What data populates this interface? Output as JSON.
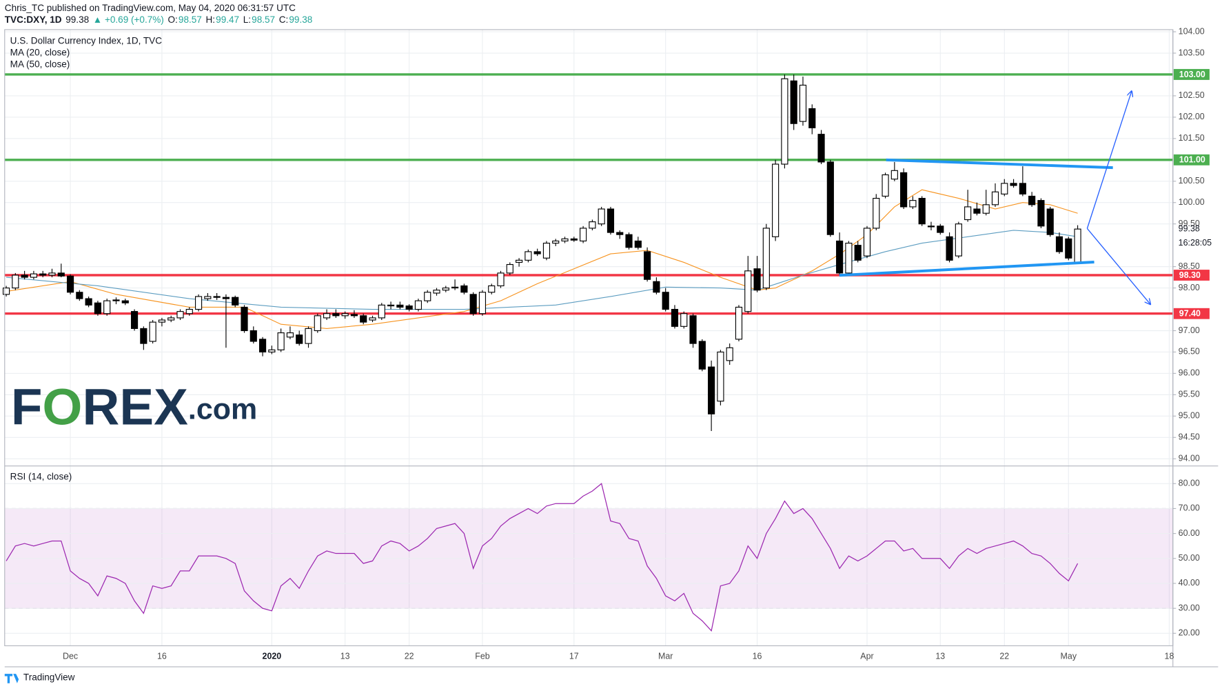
{
  "header": {
    "author_line": "Chris_TC published on TradingView.com, May 04, 2020 06:31:57 UTC",
    "quote_parts": [
      {
        "text": "TVC:DXY, 1D",
        "color": "#131722"
      },
      {
        "text": "99.38",
        "color": "#131722"
      },
      {
        "text": "▲ +0.69 (+0.7%)",
        "color": "#26a69a"
      },
      {
        "text": "O:",
        "color": "#131722"
      },
      {
        "text": "98.57",
        "color": "#26a69a"
      },
      {
        "text": "H:",
        "color": "#131722"
      },
      {
        "text": "99.47",
        "color": "#26a69a"
      },
      {
        "text": "L:",
        "color": "#131722"
      },
      {
        "text": "98.57",
        "color": "#26a69a"
      },
      {
        "text": "C:",
        "color": "#131722"
      },
      {
        "text": "99.38",
        "color": "#26a69a"
      }
    ]
  },
  "logo": {
    "parts": [
      {
        "text": "F",
        "color": "#1b3553"
      },
      {
        "text": "O",
        "color": "#43a047"
      },
      {
        "text": "REX",
        "color": "#1b3553"
      },
      {
        "text": ".com",
        "color": "#1b3553"
      }
    ]
  },
  "footer": {
    "brand": "TradingView"
  },
  "chart_data": {
    "type": "candlestick",
    "title": "U.S. Dollar Currency Index, 1D, TVC",
    "up_color": "#ffffff",
    "down_color": "#000000",
    "xlim": [
      -0.17,
      127.4
    ],
    "xticks": [
      {
        "value": 7,
        "label": "Dec"
      },
      {
        "value": 17,
        "label": "16"
      },
      {
        "value": 29,
        "label": "2020"
      },
      {
        "value": 37,
        "label": "13"
      },
      {
        "value": 44,
        "label": "22"
      },
      {
        "value": 52,
        "label": "Feb"
      },
      {
        "value": 62,
        "label": "17"
      },
      {
        "value": 72,
        "label": "Mar"
      },
      {
        "value": 82,
        "label": "16"
      },
      {
        "value": 94,
        "label": "Apr"
      },
      {
        "value": 102,
        "label": "13"
      },
      {
        "value": 109,
        "label": "22"
      },
      {
        "value": 116,
        "label": "May"
      },
      {
        "value": 127,
        "label": "18"
      }
    ],
    "ylim": [
      93.84,
      104.05
    ],
    "yticks": [
      {
        "value": 104,
        "label": "104.00"
      },
      {
        "value": 103.5,
        "label": "103.50"
      },
      {
        "value": 102.5,
        "label": "102.50"
      },
      {
        "value": 102,
        "label": "102.00"
      },
      {
        "value": 101.5,
        "label": "101.50"
      },
      {
        "value": 100.5,
        "label": "100.50"
      },
      {
        "value": 100,
        "label": "100.00"
      },
      {
        "value": 99.5,
        "label": "99.50"
      },
      {
        "value": 98.5,
        "label": "98.50"
      },
      {
        "value": 98,
        "label": "98.00"
      },
      {
        "value": 97,
        "label": "97.00"
      },
      {
        "value": 96.5,
        "label": "96.50"
      },
      {
        "value": 96,
        "label": "96.00"
      },
      {
        "value": 95.5,
        "label": "95.50"
      },
      {
        "value": 95,
        "label": "95.00"
      },
      {
        "value": 94.5,
        "label": "94.50"
      },
      {
        "value": 94,
        "label": "94.00"
      }
    ],
    "grid": true,
    "last_price": 99.38,
    "countdown": "16:28:05",
    "levels": [
      {
        "value": 103,
        "label": "103.00",
        "color": "#4caf50"
      },
      {
        "value": 101,
        "label": "101.00",
        "color": "#4caf50"
      },
      {
        "value": 98.3,
        "label": "98.30",
        "color": "#f23645"
      },
      {
        "value": 97.4,
        "label": "97.40",
        "color": "#f23645"
      }
    ],
    "candles": [
      {
        "o": 97.85,
        "h": 98.05,
        "l": 97.8,
        "c": 98.0
      },
      {
        "o": 98.0,
        "h": 98.35,
        "l": 97.95,
        "c": 98.3
      },
      {
        "o": 98.3,
        "h": 98.4,
        "l": 98.2,
        "c": 98.25
      },
      {
        "o": 98.25,
        "h": 98.4,
        "l": 98.2,
        "c": 98.33
      },
      {
        "o": 98.33,
        "h": 98.4,
        "l": 98.25,
        "c": 98.3
      },
      {
        "o": 98.3,
        "h": 98.45,
        "l": 98.25,
        "c": 98.35
      },
      {
        "o": 98.35,
        "h": 98.57,
        "l": 98.25,
        "c": 98.28
      },
      {
        "o": 98.28,
        "h": 98.32,
        "l": 97.85,
        "c": 97.9
      },
      {
        "o": 97.9,
        "h": 97.95,
        "l": 97.7,
        "c": 97.75
      },
      {
        "o": 97.75,
        "h": 97.8,
        "l": 97.55,
        "c": 97.6
      },
      {
        "o": 97.65,
        "h": 97.7,
        "l": 97.35,
        "c": 97.4
      },
      {
        "o": 97.4,
        "h": 97.75,
        "l": 97.35,
        "c": 97.7
      },
      {
        "o": 97.72,
        "h": 97.78,
        "l": 97.62,
        "c": 97.7
      },
      {
        "o": 97.7,
        "h": 97.75,
        "l": 97.6,
        "c": 97.65
      },
      {
        "o": 97.45,
        "h": 97.5,
        "l": 97.0,
        "c": 97.05
      },
      {
        "o": 97.05,
        "h": 97.1,
        "l": 96.55,
        "c": 96.7
      },
      {
        "o": 96.75,
        "h": 97.25,
        "l": 96.7,
        "c": 97.2
      },
      {
        "o": 97.2,
        "h": 97.3,
        "l": 97.1,
        "c": 97.25
      },
      {
        "o": 97.25,
        "h": 97.35,
        "l": 97.2,
        "c": 97.3
      },
      {
        "o": 97.3,
        "h": 97.5,
        "l": 97.25,
        "c": 97.45
      },
      {
        "o": 97.4,
        "h": 97.55,
        "l": 97.35,
        "c": 97.5
      },
      {
        "o": 97.5,
        "h": 97.85,
        "l": 97.45,
        "c": 97.8
      },
      {
        "o": 97.75,
        "h": 97.88,
        "l": 97.7,
        "c": 97.8
      },
      {
        "o": 97.8,
        "h": 97.88,
        "l": 97.72,
        "c": 97.78
      },
      {
        "o": 97.78,
        "h": 97.85,
        "l": 96.6,
        "c": 97.75
      },
      {
        "o": 97.78,
        "h": 97.82,
        "l": 97.55,
        "c": 97.6
      },
      {
        "o": 97.55,
        "h": 97.6,
        "l": 96.95,
        "c": 97.0
      },
      {
        "o": 97.0,
        "h": 97.1,
        "l": 96.7,
        "c": 96.75
      },
      {
        "o": 96.8,
        "h": 96.85,
        "l": 96.4,
        "c": 96.5
      },
      {
        "o": 96.5,
        "h": 96.65,
        "l": 96.45,
        "c": 96.55
      },
      {
        "o": 96.55,
        "h": 97.05,
        "l": 96.5,
        "c": 96.95
      },
      {
        "o": 96.85,
        "h": 97.1,
        "l": 96.8,
        "c": 96.95
      },
      {
        "o": 96.9,
        "h": 97.0,
        "l": 96.65,
        "c": 96.7
      },
      {
        "o": 96.7,
        "h": 97.1,
        "l": 96.6,
        "c": 97.05
      },
      {
        "o": 97.0,
        "h": 97.4,
        "l": 96.95,
        "c": 97.35
      },
      {
        "o": 97.3,
        "h": 97.5,
        "l": 97.25,
        "c": 97.4
      },
      {
        "o": 97.4,
        "h": 97.5,
        "l": 97.3,
        "c": 97.35
      },
      {
        "o": 97.35,
        "h": 97.45,
        "l": 97.28,
        "c": 97.4
      },
      {
        "o": 97.38,
        "h": 97.48,
        "l": 97.3,
        "c": 97.35
      },
      {
        "o": 97.35,
        "h": 97.4,
        "l": 97.15,
        "c": 97.2
      },
      {
        "o": 97.25,
        "h": 97.35,
        "l": 97.2,
        "c": 97.3
      },
      {
        "o": 97.3,
        "h": 97.65,
        "l": 97.25,
        "c": 97.6
      },
      {
        "o": 97.58,
        "h": 97.68,
        "l": 97.5,
        "c": 97.6
      },
      {
        "o": 97.6,
        "h": 97.68,
        "l": 97.5,
        "c": 97.55
      },
      {
        "o": 97.58,
        "h": 97.62,
        "l": 97.45,
        "c": 97.5
      },
      {
        "o": 97.5,
        "h": 97.75,
        "l": 97.45,
        "c": 97.7
      },
      {
        "o": 97.7,
        "h": 97.95,
        "l": 97.65,
        "c": 97.9
      },
      {
        "o": 97.88,
        "h": 98.0,
        "l": 97.82,
        "c": 97.95
      },
      {
        "o": 97.95,
        "h": 98.05,
        "l": 97.9,
        "c": 98.0
      },
      {
        "o": 98.0,
        "h": 98.2,
        "l": 97.95,
        "c": 98.02
      },
      {
        "o": 98.05,
        "h": 98.1,
        "l": 97.85,
        "c": 97.9
      },
      {
        "o": 97.85,
        "h": 97.9,
        "l": 97.35,
        "c": 97.4
      },
      {
        "o": 97.4,
        "h": 97.95,
        "l": 97.35,
        "c": 97.9
      },
      {
        "o": 97.9,
        "h": 98.1,
        "l": 97.85,
        "c": 98.05
      },
      {
        "o": 98.05,
        "h": 98.4,
        "l": 98.0,
        "c": 98.35
      },
      {
        "o": 98.35,
        "h": 98.6,
        "l": 98.3,
        "c": 98.55
      },
      {
        "o": 98.6,
        "h": 98.7,
        "l": 98.5,
        "c": 98.65
      },
      {
        "o": 98.65,
        "h": 98.9,
        "l": 98.6,
        "c": 98.85
      },
      {
        "o": 98.85,
        "h": 98.92,
        "l": 98.75,
        "c": 98.8
      },
      {
        "o": 98.7,
        "h": 99.1,
        "l": 98.65,
        "c": 99.05
      },
      {
        "o": 99.05,
        "h": 99.15,
        "l": 98.98,
        "c": 99.1
      },
      {
        "o": 99.1,
        "h": 99.2,
        "l": 99.05,
        "c": 99.15
      },
      {
        "o": 99.15,
        "h": 99.2,
        "l": 99.08,
        "c": 99.12
      },
      {
        "o": 99.1,
        "h": 99.45,
        "l": 99.05,
        "c": 99.4
      },
      {
        "o": 99.4,
        "h": 99.6,
        "l": 99.35,
        "c": 99.55
      },
      {
        "o": 99.5,
        "h": 99.9,
        "l": 99.45,
        "c": 99.85
      },
      {
        "o": 99.85,
        "h": 99.9,
        "l": 99.25,
        "c": 99.3
      },
      {
        "o": 99.3,
        "h": 99.35,
        "l": 99.15,
        "c": 99.25
      },
      {
        "o": 99.25,
        "h": 99.3,
        "l": 98.9,
        "c": 98.95
      },
      {
        "o": 99.1,
        "h": 99.2,
        "l": 98.9,
        "c": 98.95
      },
      {
        "o": 98.85,
        "h": 98.95,
        "l": 98.15,
        "c": 98.2
      },
      {
        "o": 98.15,
        "h": 98.25,
        "l": 97.85,
        "c": 97.9
      },
      {
        "o": 97.9,
        "h": 98.0,
        "l": 97.45,
        "c": 97.5
      },
      {
        "o": 97.5,
        "h": 97.6,
        "l": 97.05,
        "c": 97.1
      },
      {
        "o": 97.1,
        "h": 97.45,
        "l": 97.05,
        "c": 97.4
      },
      {
        "o": 97.35,
        "h": 97.4,
        "l": 96.6,
        "c": 96.7
      },
      {
        "o": 96.75,
        "h": 96.8,
        "l": 96.05,
        "c": 96.1
      },
      {
        "o": 96.15,
        "h": 96.3,
        "l": 94.65,
        "c": 95.05
      },
      {
        "o": 95.35,
        "h": 96.55,
        "l": 95.25,
        "c": 96.5
      },
      {
        "o": 96.3,
        "h": 96.7,
        "l": 96.2,
        "c": 96.6
      },
      {
        "o": 96.8,
        "h": 97.6,
        "l": 96.75,
        "c": 97.55
      },
      {
        "o": 97.45,
        "h": 98.75,
        "l": 97.4,
        "c": 98.4
      },
      {
        "o": 98.45,
        "h": 98.75,
        "l": 97.9,
        "c": 97.95
      },
      {
        "o": 98.0,
        "h": 99.5,
        "l": 97.95,
        "c": 99.4
      },
      {
        "o": 99.2,
        "h": 101.0,
        "l": 99.1,
        "c": 100.9
      },
      {
        "o": 100.9,
        "h": 103.0,
        "l": 100.8,
        "c": 102.9
      },
      {
        "o": 102.85,
        "h": 103.0,
        "l": 101.7,
        "c": 101.85
      },
      {
        "o": 101.9,
        "h": 102.95,
        "l": 101.8,
        "c": 102.75
      },
      {
        "o": 102.2,
        "h": 102.3,
        "l": 101.6,
        "c": 101.75
      },
      {
        "o": 101.6,
        "h": 101.7,
        "l": 100.9,
        "c": 100.95
      },
      {
        "o": 100.95,
        "h": 101.0,
        "l": 99.2,
        "c": 99.25
      },
      {
        "o": 99.1,
        "h": 99.3,
        "l": 98.3,
        "c": 98.35
      },
      {
        "o": 98.35,
        "h": 99.1,
        "l": 98.3,
        "c": 99.05
      },
      {
        "o": 99.0,
        "h": 99.1,
        "l": 98.6,
        "c": 98.65
      },
      {
        "o": 98.75,
        "h": 99.45,
        "l": 98.7,
        "c": 99.4
      },
      {
        "o": 99.4,
        "h": 100.2,
        "l": 99.35,
        "c": 100.1
      },
      {
        "o": 100.15,
        "h": 100.7,
        "l": 100.1,
        "c": 100.65
      },
      {
        "o": 100.55,
        "h": 100.95,
        "l": 100.5,
        "c": 100.75
      },
      {
        "o": 100.7,
        "h": 100.8,
        "l": 99.85,
        "c": 99.9
      },
      {
        "o": 99.9,
        "h": 100.15,
        "l": 99.85,
        "c": 100.05
      },
      {
        "o": 100.1,
        "h": 100.15,
        "l": 99.45,
        "c": 99.5
      },
      {
        "o": 99.45,
        "h": 99.55,
        "l": 99.35,
        "c": 99.45
      },
      {
        "o": 99.45,
        "h": 99.5,
        "l": 99.25,
        "c": 99.3
      },
      {
        "o": 99.2,
        "h": 99.3,
        "l": 98.6,
        "c": 98.65
      },
      {
        "o": 98.75,
        "h": 99.55,
        "l": 98.7,
        "c": 99.5
      },
      {
        "o": 99.6,
        "h": 100.3,
        "l": 99.55,
        "c": 99.9
      },
      {
        "o": 99.85,
        "h": 100.0,
        "l": 99.7,
        "c": 99.75
      },
      {
        "o": 99.75,
        "h": 100.3,
        "l": 99.7,
        "c": 99.95
      },
      {
        "o": 99.95,
        "h": 100.45,
        "l": 99.9,
        "c": 100.25
      },
      {
        "o": 100.2,
        "h": 100.55,
        "l": 100.15,
        "c": 100.45
      },
      {
        "o": 100.45,
        "h": 100.55,
        "l": 100.35,
        "c": 100.4
      },
      {
        "o": 100.45,
        "h": 100.85,
        "l": 100.15,
        "c": 100.2
      },
      {
        "o": 100.15,
        "h": 100.25,
        "l": 99.9,
        "c": 99.95
      },
      {
        "o": 100.05,
        "h": 100.1,
        "l": 99.4,
        "c": 99.45
      },
      {
        "o": 99.85,
        "h": 99.9,
        "l": 99.2,
        "c": 99.25
      },
      {
        "o": 99.2,
        "h": 99.3,
        "l": 98.8,
        "c": 98.85
      },
      {
        "o": 99.15,
        "h": 99.2,
        "l": 98.65,
        "c": 98.7
      },
      {
        "o": 98.57,
        "h": 99.47,
        "l": 98.57,
        "c": 99.38
      }
    ],
    "series": [
      {
        "name": "MA (20, close)",
        "color": "#f7931e",
        "x": [
          0,
          7,
          12,
          20,
          26,
          30,
          35,
          40,
          45,
          50,
          54,
          58,
          62,
          66,
          70,
          74,
          78,
          82,
          84,
          88,
          91,
          94,
          97,
          100,
          104,
          108,
          111,
          114,
          117
        ],
        "values": [
          97.92,
          98.15,
          97.85,
          97.55,
          97.55,
          97.15,
          97.05,
          97.15,
          97.3,
          97.45,
          97.7,
          98.1,
          98.45,
          98.8,
          98.88,
          98.6,
          98.25,
          97.95,
          98.0,
          98.4,
          98.79,
          99.25,
          99.9,
          100.3,
          100.1,
          99.85,
          100.0,
          99.95,
          99.75
        ]
      },
      {
        "name": "MA (50, close)",
        "color": "#5b9cc0",
        "x": [
          0,
          10,
          20,
          30,
          40,
          50,
          60,
          66,
          72,
          78,
          82,
          87,
          91,
          96,
          100,
          105,
          110,
          114,
          117
        ],
        "values": [
          98.25,
          98.05,
          97.75,
          97.55,
          97.5,
          97.5,
          97.6,
          97.8,
          98.02,
          98.0,
          97.95,
          98.3,
          98.55,
          98.85,
          99.05,
          99.2,
          99.35,
          99.3,
          99.2
        ]
      }
    ],
    "rsi": {
      "name": "RSI (14, close)",
      "color": "#9c27b0",
      "ylim": [
        15,
        86.9
      ],
      "yticks": [
        {
          "value": 80,
          "label": "80.00"
        },
        {
          "value": 70,
          "label": "70.00"
        },
        {
          "value": 60,
          "label": "60.00"
        },
        {
          "value": 50,
          "label": "50.00"
        },
        {
          "value": 40,
          "label": "40.00"
        },
        {
          "value": 30,
          "label": "30.00"
        },
        {
          "value": 20,
          "label": "20.00"
        }
      ],
      "band": [
        30,
        70
      ],
      "values": [
        49,
        55,
        56,
        55,
        56,
        57,
        57,
        45,
        42,
        40,
        35,
        43,
        42,
        40,
        33,
        28,
        39,
        38,
        39,
        45,
        45,
        51,
        51,
        51,
        50,
        48,
        37,
        33,
        30,
        29,
        39,
        42,
        38,
        45,
        51,
        53,
        52,
        52,
        52,
        48,
        49,
        55,
        57,
        56,
        53,
        55,
        58,
        62,
        63,
        64,
        60,
        46,
        55,
        58,
        63,
        66,
        68,
        70,
        68,
        71,
        72,
        72,
        72,
        75,
        77,
        80,
        65,
        64,
        58,
        57,
        47,
        42,
        35,
        33,
        36,
        28,
        25,
        21,
        39,
        40,
        45,
        55,
        50,
        60,
        66,
        73,
        68,
        70,
        66,
        60,
        54,
        46,
        51,
        49,
        51,
        54,
        57,
        57,
        53,
        54,
        50,
        50,
        50,
        46,
        51,
        54,
        52,
        54,
        55,
        56,
        57,
        55,
        52,
        51,
        48,
        44,
        41,
        48
      ]
    }
  }
}
